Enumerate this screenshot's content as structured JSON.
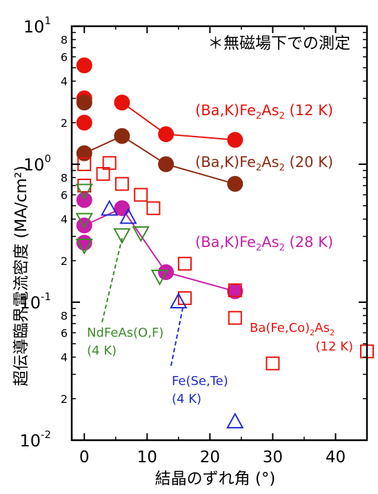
{
  "chart_data": {
    "type": "scatter",
    "title": "",
    "note": "＊無磁場下での測定",
    "xlabel": "結晶のずれ角 (°)",
    "ylabel": "超伝導臨界電流密度 (MA/cm²)",
    "xscale": "linear",
    "yscale": "log",
    "xlim": [
      -2,
      45
    ],
    "ylim": [
      0.01,
      10
    ],
    "x_ticks": [
      0,
      10,
      20,
      30,
      40
    ],
    "x_tick_labels": [
      "0",
      "10",
      "20",
      "30",
      "40"
    ],
    "y_major_labels": [
      {
        "value": 0.01,
        "base": "10",
        "exp": "-2"
      },
      {
        "value": 0.1,
        "base": "10",
        "exp": "-1"
      },
      {
        "value": 1,
        "base": "10",
        "exp": "0"
      },
      {
        "value": 10,
        "base": "10",
        "exp": "1"
      }
    ],
    "y_minor_labels": [
      {
        "value": 0.02,
        "label": "2"
      },
      {
        "value": 0.04,
        "label": "4"
      },
      {
        "value": 0.06,
        "label": "6"
      },
      {
        "value": 0.08,
        "label": "8"
      },
      {
        "value": 0.2,
        "label": "2"
      },
      {
        "value": 0.4,
        "label": "4"
      },
      {
        "value": 0.6,
        "label": "6"
      },
      {
        "value": 0.8,
        "label": "8"
      },
      {
        "value": 2,
        "label": "2"
      },
      {
        "value": 4,
        "label": "4"
      },
      {
        "value": 6,
        "label": "6"
      },
      {
        "value": 8,
        "label": "8"
      }
    ],
    "series": [
      {
        "name": "(Ba,K)Fe2As2 (12 K)",
        "label_main": "(Ba,K)Fe",
        "label_parts": [
          "2",
          "As",
          "2",
          " (12 K)"
        ],
        "color": "#e8120c",
        "marker": "filled-circle",
        "points": [
          [
            0,
            5.2
          ],
          [
            0,
            3.0
          ],
          [
            0,
            2.0
          ],
          [
            6,
            2.8
          ],
          [
            13,
            1.65
          ],
          [
            24,
            1.5
          ]
        ],
        "line_points": [
          [
            6,
            2.8
          ],
          [
            13,
            1.65
          ],
          [
            24,
            1.5
          ]
        ]
      },
      {
        "name": "(Ba,K)Fe2As2 (20 K)",
        "label_main": "(Ba,K)Fe",
        "label_parts": [
          "2",
          "As",
          "2",
          " (20 K)"
        ],
        "color": "#8b2a10",
        "marker": "filled-circle",
        "points": [
          [
            0,
            2.8
          ],
          [
            0,
            1.2
          ],
          [
            6,
            1.6
          ],
          [
            13,
            1.0
          ],
          [
            24,
            0.72
          ]
        ],
        "line_points": [
          [
            0,
            1.2
          ],
          [
            6,
            1.6
          ],
          [
            13,
            1.0
          ],
          [
            24,
            0.72
          ]
        ]
      },
      {
        "name": "(Ba,K)Fe2As2 (28 K)",
        "label_main": "(Ba,K)Fe",
        "label_parts": [
          "2",
          "As",
          "2",
          " (28 K)"
        ],
        "color": "#c81ea8",
        "marker": "filled-circle",
        "points": [
          [
            0,
            0.55
          ],
          [
            0,
            0.36
          ],
          [
            0,
            0.27
          ],
          [
            6,
            0.48
          ],
          [
            13,
            0.165
          ],
          [
            24,
            0.12
          ]
        ],
        "line_points": [
          [
            0,
            0.36
          ],
          [
            6,
            0.48
          ],
          [
            13,
            0.165
          ],
          [
            24,
            0.12
          ]
        ]
      },
      {
        "name": "Ba(Fe,Co)2As2 (12 K)",
        "label_main": "Ba(Fe,Co)",
        "label_parts": [
          "2",
          "As",
          "2"
        ],
        "label_line2": "(12 K)",
        "color": "#e8120c",
        "marker": "open-square",
        "points": [
          [
            0,
            1.0
          ],
          [
            0,
            0.7
          ],
          [
            3,
            0.85
          ],
          [
            4,
            1.02
          ],
          [
            6,
            0.72
          ],
          [
            9,
            0.6
          ],
          [
            11,
            0.48
          ],
          [
            16,
            0.19
          ],
          [
            16,
            0.107
          ],
          [
            24,
            0.122
          ],
          [
            24,
            0.077
          ],
          [
            30,
            0.036
          ],
          [
            45,
            0.044
          ]
        ]
      },
      {
        "name": "NdFeAs(O,F) (4 K)",
        "label_line1": "NdFeAs(O,F)",
        "label_line2": "(4 K)",
        "color": "#3a8a2a",
        "marker": "open-triangle-down",
        "points": [
          [
            0,
            0.65
          ],
          [
            0,
            0.4
          ],
          [
            0,
            0.26
          ],
          [
            6,
            0.31
          ],
          [
            9,
            0.32
          ],
          [
            12,
            0.155
          ]
        ]
      },
      {
        "name": "Fe(Se,Te) (4 K)",
        "label_line1": "Fe(Se,Te)",
        "label_line2": "(4 K)",
        "color": "#1f2ad0",
        "marker": "open-triangle-up",
        "points": [
          [
            4,
            0.47
          ],
          [
            7,
            0.41
          ],
          [
            15,
            0.1
          ],
          [
            24,
            0.0135
          ]
        ]
      }
    ]
  }
}
